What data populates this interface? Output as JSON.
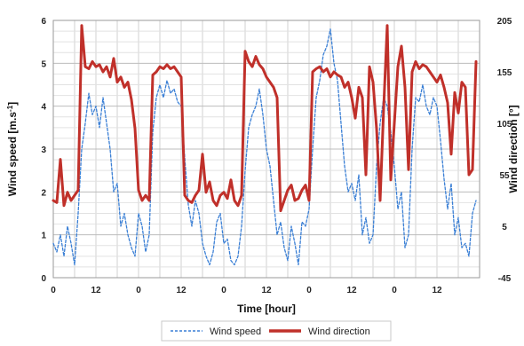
{
  "chart_data": {
    "type": "line",
    "xlabel": "Time [hour]",
    "ylabel_left": "Wind speed [m.s",
    "ylabel_left_sup": "-1",
    "ylabel_left_end": "]",
    "ylabel_right": "Wind direction [°]",
    "x_tick_labels": [
      "0",
      "12",
      "0",
      "12",
      "0",
      "12",
      "0",
      "12",
      "0",
      "12"
    ],
    "y_left_ticks": [
      "0",
      "1",
      "2",
      "3",
      "4",
      "5",
      "6"
    ],
    "y_right_ticks": [
      "-45",
      "5",
      "55",
      "105",
      "155",
      "205"
    ],
    "ylim_left": [
      0,
      6
    ],
    "ylim_right": [
      -45,
      205
    ],
    "xlim": [
      0,
      120
    ],
    "grid": true,
    "legend_position": "bottom",
    "series": [
      {
        "name": "Wind speed",
        "axis": "left",
        "color": "#3a7fd5",
        "style": "dashed",
        "x": [
          0,
          1,
          2,
          3,
          4,
          5,
          6,
          7,
          8,
          9,
          10,
          11,
          12,
          13,
          14,
          15,
          16,
          17,
          18,
          19,
          20,
          21,
          22,
          23,
          24,
          25,
          26,
          27,
          28,
          29,
          30,
          31,
          32,
          33,
          34,
          35,
          36,
          37,
          38,
          39,
          40,
          41,
          42,
          43,
          44,
          45,
          46,
          47,
          48,
          49,
          50,
          51,
          52,
          53,
          54,
          55,
          56,
          57,
          58,
          59,
          60,
          61,
          62,
          63,
          64,
          65,
          66,
          67,
          68,
          69,
          70,
          71,
          72,
          73,
          74,
          75,
          76,
          77,
          78,
          79,
          80,
          81,
          82,
          83,
          84,
          85,
          86,
          87,
          88,
          89,
          90,
          91,
          92,
          93,
          94,
          95,
          96,
          97,
          98,
          99,
          100,
          101,
          102,
          103,
          104,
          105,
          106,
          107,
          108,
          109,
          110,
          111,
          112,
          113,
          114,
          115,
          116,
          117,
          118,
          119
        ],
        "values": [
          0.8,
          0.6,
          1.0,
          0.5,
          1.2,
          0.8,
          0.3,
          1.5,
          3.0,
          3.6,
          4.3,
          3.8,
          4.0,
          3.5,
          4.2,
          3.6,
          3.0,
          2.0,
          2.2,
          1.2,
          1.5,
          1.0,
          0.7,
          0.5,
          1.5,
          1.2,
          0.6,
          1.0,
          3.4,
          4.2,
          4.5,
          4.2,
          4.6,
          4.3,
          4.4,
          4.1,
          4.0,
          2.8,
          1.7,
          1.2,
          1.8,
          1.5,
          0.8,
          0.5,
          0.3,
          0.6,
          1.3,
          1.5,
          0.8,
          0.9,
          0.4,
          0.3,
          0.5,
          1.2,
          2.5,
          3.5,
          3.8,
          4.0,
          4.4,
          3.8,
          3.0,
          2.6,
          1.8,
          1.0,
          1.3,
          0.7,
          0.4,
          1.2,
          0.8,
          0.3,
          1.3,
          1.2,
          1.6,
          3.0,
          4.2,
          4.6,
          5.2,
          5.4,
          5.8,
          5.0,
          4.6,
          3.6,
          2.6,
          2.0,
          2.2,
          1.8,
          2.4,
          1.0,
          1.4,
          0.8,
          1.0,
          2.6,
          3.6,
          4.2,
          4.0,
          3.4,
          2.6,
          1.6,
          2.0,
          0.7,
          1.0,
          3.0,
          4.2,
          4.1,
          4.5,
          4.0,
          3.8,
          4.2,
          4.0,
          3.2,
          2.3,
          1.6,
          2.2,
          1.0,
          1.4,
          0.7,
          0.8,
          0.5,
          1.5,
          1.8
        ]
      },
      {
        "name": "Wind direction",
        "axis": "right",
        "color": "#c0302a",
        "style": "solid",
        "x": [
          0,
          1,
          2,
          3,
          4,
          5,
          6,
          7,
          8,
          9,
          10,
          11,
          12,
          13,
          14,
          15,
          16,
          17,
          18,
          19,
          20,
          21,
          22,
          23,
          24,
          25,
          26,
          27,
          28,
          29,
          30,
          31,
          32,
          33,
          34,
          35,
          36,
          37,
          38,
          39,
          40,
          41,
          42,
          43,
          44,
          45,
          46,
          47,
          48,
          49,
          50,
          51,
          52,
          53,
          54,
          55,
          56,
          57,
          58,
          59,
          60,
          61,
          62,
          63,
          64,
          65,
          66,
          67,
          68,
          69,
          70,
          71,
          72,
          73,
          74,
          75,
          76,
          77,
          78,
          79,
          80,
          81,
          82,
          83,
          84,
          85,
          86,
          87,
          88,
          89,
          90,
          91,
          92,
          93,
          94,
          95,
          96,
          97,
          98,
          99,
          100,
          101,
          102,
          103,
          104,
          105,
          106,
          107,
          108,
          109,
          110,
          111,
          112,
          113,
          114,
          115,
          116,
          117,
          118,
          119
        ],
        "values": [
          30,
          28,
          70,
          25,
          38,
          30,
          35,
          40,
          200,
          160,
          158,
          165,
          160,
          162,
          155,
          160,
          150,
          168,
          145,
          150,
          140,
          145,
          128,
          100,
          40,
          30,
          35,
          30,
          152,
          155,
          160,
          158,
          162,
          158,
          160,
          155,
          150,
          35,
          30,
          28,
          35,
          40,
          75,
          38,
          48,
          30,
          25,
          35,
          38,
          32,
          50,
          30,
          25,
          35,
          175,
          165,
          160,
          170,
          162,
          158,
          150,
          145,
          140,
          130,
          20,
          30,
          40,
          45,
          30,
          32,
          40,
          45,
          30,
          155,
          158,
          160,
          155,
          158,
          150,
          155,
          152,
          150,
          140,
          145,
          130,
          110,
          140,
          130,
          55,
          160,
          145,
          100,
          30,
          120,
          200,
          50,
          105,
          160,
          180,
          140,
          60,
          155,
          165,
          158,
          162,
          160,
          155,
          150,
          145,
          152,
          140,
          125,
          75,
          135,
          115,
          145,
          140,
          55,
          60,
          165
        ]
      }
    ]
  }
}
